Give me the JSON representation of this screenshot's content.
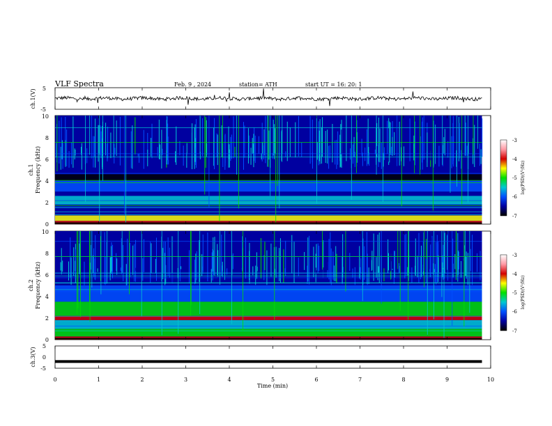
{
  "header": {
    "title": "VLF  Spectra",
    "date": "Feb. 9  , 2024",
    "station": "station= ATH",
    "start": "start  UT  =    16: 20: 1"
  },
  "colors": {
    "trace": "#000000",
    "colormap": [
      "#ffffff",
      "#ff9aa5",
      "#d40000",
      "#ffff00",
      "#00e000",
      "#00c8d2",
      "#0050ff",
      "#0000a0",
      "#000000"
    ]
  },
  "chart_data": [
    {
      "type": "line",
      "panel": "ch1",
      "ylabel": "ch.1(V)",
      "ylim": [
        -5,
        5
      ],
      "yticks": [
        "5",
        "-5"
      ],
      "xlim": [
        0,
        10
      ],
      "series": [
        {
          "x": [
            0,
            9.8
          ],
          "y": [
            0,
            0
          ],
          "note_type": "noisy waveform around 0 V"
        }
      ]
    },
    {
      "type": "heatmap",
      "panel": "ch1-spectrogram",
      "ylabel_line1": "ch.1",
      "ylabel_line2": "Frequency  (kHz)",
      "ylim": [
        0,
        10
      ],
      "yticks": [
        "0",
        "2",
        "4",
        "6",
        "8",
        "10"
      ],
      "xlim": [
        0,
        10
      ],
      "data_xmax": 9.8,
      "colorbar": {
        "label": "log(PSD)(V²/Hz)",
        "range": [
          -7,
          -3
        ],
        "ticks": [
          "-3",
          "-4",
          "-5",
          "-6",
          "-7"
        ]
      },
      "bands": [
        {
          "f": [
            0.0,
            0.3
          ],
          "level": -3.8
        },
        {
          "f": [
            0.3,
            0.8
          ],
          "level": -4.6
        },
        {
          "f": [
            1.8,
            2.2
          ],
          "level": -5.3
        },
        {
          "f": [
            2.2,
            2.6
          ],
          "level": -5.6
        },
        {
          "f": [
            3.0,
            4.0
          ],
          "level": -6.2
        },
        {
          "f": [
            4.0,
            4.6
          ],
          "level": -6.9
        },
        {
          "f": [
            4.6,
            5.0
          ],
          "level": -6.4
        },
        {
          "f": [
            6.8,
            10.0
          ],
          "level": -6.3
        }
      ]
    },
    {
      "type": "heatmap",
      "panel": "ch2-spectrogram",
      "ylabel_line1": "ch.2",
      "ylabel_line2": "Frequency  (kHz)",
      "ylim": [
        0,
        10
      ],
      "yticks": [
        "0",
        "2",
        "4",
        "6",
        "8",
        "10"
      ],
      "xlim": [
        0,
        10
      ],
      "data_xmax": 9.8,
      "colorbar": {
        "label": "log(PSD)(V²/Hz)",
        "range": [
          -7,
          -3
        ],
        "ticks": [
          "-3",
          "-4",
          "-5",
          "-6",
          "-7"
        ]
      },
      "bands": [
        {
          "f": [
            0.0,
            0.3
          ],
          "level": -3.8
        },
        {
          "f": [
            0.3,
            1.0
          ],
          "level": -4.8
        },
        {
          "f": [
            1.0,
            1.8
          ],
          "level": -5.4
        },
        {
          "f": [
            1.8,
            2.2
          ],
          "level": -4.2
        },
        {
          "f": [
            2.2,
            3.5
          ],
          "level": -5.2
        },
        {
          "f": [
            3.5,
            5.0
          ],
          "level": -5.8
        },
        {
          "f": [
            6.8,
            10.0
          ],
          "level": -6.4
        }
      ]
    },
    {
      "type": "line",
      "panel": "ch3",
      "ylabel": "ch.3(V)",
      "ylim": [
        -5,
        5
      ],
      "yticks": [
        "5",
        "0",
        "-5"
      ],
      "xlim": [
        0,
        10
      ],
      "xlabel": "Time  (min)",
      "xticks": [
        "0",
        "1",
        "2",
        "3",
        "4",
        "5",
        "6",
        "7",
        "8",
        "9",
        "10"
      ],
      "series": [
        {
          "x": [
            0,
            9.8
          ],
          "y": [
            -2,
            -2
          ]
        }
      ]
    }
  ]
}
